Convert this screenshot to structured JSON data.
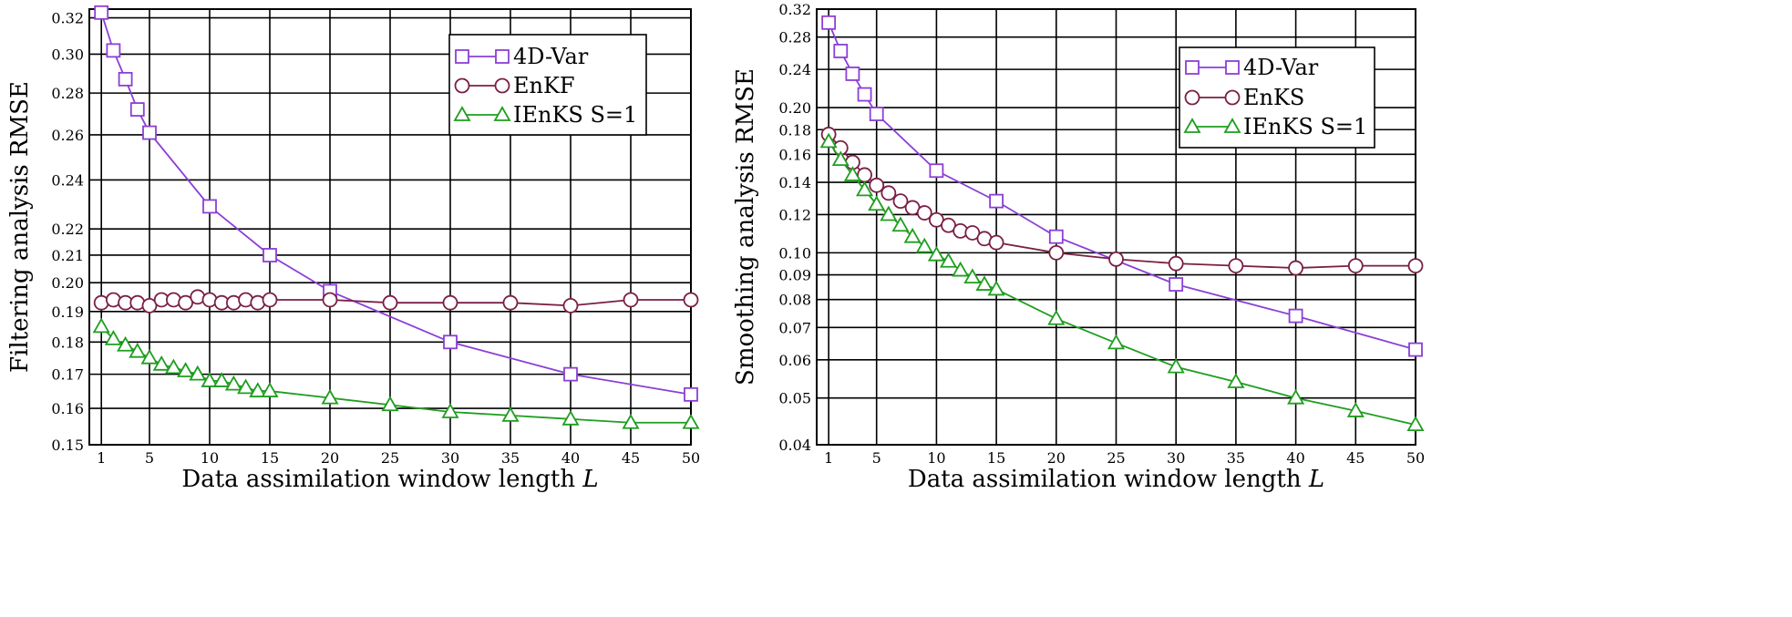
{
  "chart_data": [
    {
      "type": "line",
      "ylabel": "Filtering analysis RMSE",
      "xlabel": "Data assimilation window length L",
      "xlabel_text": "Data assimilation window length ",
      "xlabel_var": "L",
      "xlim": [
        0,
        50
      ],
      "ylim": [
        0.15,
        0.325
      ],
      "y_scale": "log",
      "grid": true,
      "legend_position": "top-right",
      "x_ticks": [
        1,
        5,
        10,
        15,
        20,
        25,
        30,
        35,
        40,
        45,
        50
      ],
      "y_ticks": [
        0.15,
        0.16,
        0.17,
        0.18,
        0.19,
        0.2,
        0.21,
        0.22,
        0.24,
        0.26,
        0.28,
        0.3,
        0.32
      ],
      "y_tick_labels": [
        "0.15",
        "0.16",
        "0.17",
        "0.18",
        "0.19",
        "0.20",
        "0.21",
        "0.22",
        "0.24",
        "0.26",
        "0.28",
        "0.30",
        "0.32"
      ],
      "series": [
        {
          "name": "4D-Var",
          "marker": "square",
          "color": "#8b3fd6",
          "x": [
            1,
            2,
            3,
            4,
            5,
            10,
            15,
            20,
            30,
            40,
            50
          ],
          "y": [
            0.323,
            0.302,
            0.287,
            0.272,
            0.261,
            0.229,
            0.21,
            0.197,
            0.18,
            0.17,
            0.164
          ]
        },
        {
          "name": "EnKF",
          "marker": "circle",
          "color": "#7a1f45",
          "x": [
            1,
            2,
            3,
            4,
            5,
            6,
            7,
            8,
            9,
            10,
            11,
            12,
            13,
            14,
            15,
            20,
            25,
            30,
            35,
            40,
            45,
            50
          ],
          "y": [
            0.193,
            0.194,
            0.193,
            0.193,
            0.192,
            0.194,
            0.194,
            0.193,
            0.195,
            0.194,
            0.193,
            0.193,
            0.194,
            0.193,
            0.194,
            0.194,
            0.193,
            0.193,
            0.193,
            0.192,
            0.194,
            0.194
          ]
        },
        {
          "name": "IEnKS S=1",
          "marker": "triangle",
          "color": "#1f9e1f",
          "x": [
            1,
            2,
            3,
            4,
            5,
            6,
            7,
            8,
            9,
            10,
            11,
            12,
            13,
            14,
            15,
            20,
            25,
            30,
            35,
            40,
            45,
            50
          ],
          "y": [
            0.185,
            0.181,
            0.179,
            0.177,
            0.175,
            0.173,
            0.172,
            0.171,
            0.17,
            0.168,
            0.168,
            0.167,
            0.166,
            0.165,
            0.165,
            0.163,
            0.161,
            0.159,
            0.158,
            0.157,
            0.156,
            0.156
          ]
        }
      ]
    },
    {
      "type": "line",
      "ylabel": "Smoothing analysis RMSE",
      "xlabel": "Data assimilation window length L",
      "xlabel_text": "Data assimilation window length ",
      "xlabel_var": "L",
      "xlim": [
        0,
        50
      ],
      "ylim": [
        0.04,
        0.32
      ],
      "y_scale": "log",
      "grid": true,
      "legend_position": "top-right",
      "x_ticks": [
        1,
        5,
        10,
        15,
        20,
        25,
        30,
        35,
        40,
        45,
        50
      ],
      "y_ticks": [
        0.04,
        0.05,
        0.06,
        0.07,
        0.08,
        0.09,
        0.1,
        0.12,
        0.14,
        0.16,
        0.18,
        0.2,
        0.24,
        0.28,
        0.32
      ],
      "y_tick_labels": [
        "0.04",
        "0.05",
        "0.06",
        "0.07",
        "0.08",
        "0.09",
        "0.10",
        "0.12",
        "0.14",
        "0.16",
        "0.18",
        "0.20",
        "0.24",
        "0.28",
        "0.32"
      ],
      "series": [
        {
          "name": "4D-Var",
          "marker": "square",
          "color": "#8b3fd6",
          "x": [
            1,
            2,
            3,
            4,
            5,
            10,
            15,
            20,
            30,
            40,
            50
          ],
          "y": [
            0.3,
            0.262,
            0.235,
            0.213,
            0.194,
            0.148,
            0.128,
            0.108,
            0.086,
            0.074,
            0.063
          ]
        },
        {
          "name": "EnKS",
          "marker": "circle",
          "color": "#7a1f45",
          "x": [
            1,
            2,
            3,
            4,
            5,
            6,
            7,
            8,
            9,
            10,
            11,
            12,
            13,
            14,
            15,
            20,
            25,
            30,
            35,
            40,
            45,
            50
          ],
          "y": [
            0.176,
            0.165,
            0.154,
            0.145,
            0.138,
            0.133,
            0.128,
            0.124,
            0.121,
            0.117,
            0.114,
            0.111,
            0.11,
            0.107,
            0.105,
            0.1,
            0.097,
            0.095,
            0.094,
            0.093,
            0.094,
            0.094
          ]
        },
        {
          "name": "IEnKS S=1",
          "marker": "triangle",
          "color": "#1f9e1f",
          "x": [
            1,
            2,
            3,
            4,
            5,
            6,
            7,
            8,
            9,
            10,
            11,
            12,
            13,
            14,
            15,
            20,
            25,
            30,
            35,
            40,
            45,
            50
          ],
          "y": [
            0.17,
            0.156,
            0.145,
            0.135,
            0.126,
            0.12,
            0.114,
            0.108,
            0.103,
            0.099,
            0.096,
            0.092,
            0.089,
            0.086,
            0.084,
            0.073,
            0.065,
            0.058,
            0.054,
            0.05,
            0.047,
            0.044
          ]
        }
      ]
    }
  ]
}
